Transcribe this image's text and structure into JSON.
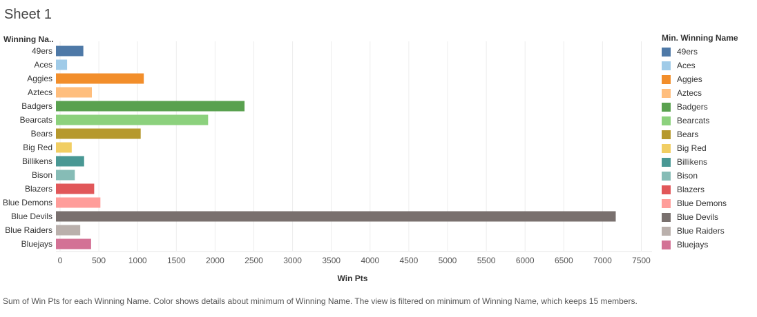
{
  "sheet": {
    "title": "Sheet 1"
  },
  "chart_data": {
    "type": "bar",
    "orientation": "horizontal",
    "row_header": "Winning Na..",
    "xlabel": "Win Pts",
    "xlim": [
      0,
      7700
    ],
    "xticks": [
      0,
      500,
      1000,
      1500,
      2000,
      2500,
      3000,
      3500,
      4000,
      4500,
      5000,
      5500,
      6000,
      6500,
      7000,
      7500
    ],
    "grid": "vertical",
    "legend_position": "right",
    "legend_title": "Min. Winning Name",
    "categories": [
      "49ers",
      "Aces",
      "Aggies",
      "Aztecs",
      "Badgers",
      "Bearcats",
      "Bears",
      "Big Red",
      "Billikens",
      "Bison",
      "Blazers",
      "Blue Demons",
      "Blue Devils",
      "Blue Raiders",
      "Bluejays"
    ],
    "values": [
      300,
      90,
      1080,
      410,
      2380,
      1910,
      1040,
      150,
      310,
      190,
      440,
      520,
      7170,
      260,
      400
    ],
    "colors": [
      "#4e79a7",
      "#a0cbe8",
      "#f28e2b",
      "#ffbe7d",
      "#59a14f",
      "#8cd17d",
      "#b6992d",
      "#f1ce63",
      "#499894",
      "#86bcb6",
      "#e15759",
      "#ff9d9a",
      "#79706e",
      "#bab0ac",
      "#d37295"
    ]
  },
  "caption": "Sum of Win Pts for each Winning Name.  Color shows details about minimum of Winning Name. The view is filtered on minimum of Winning Name, which keeps 15 members."
}
